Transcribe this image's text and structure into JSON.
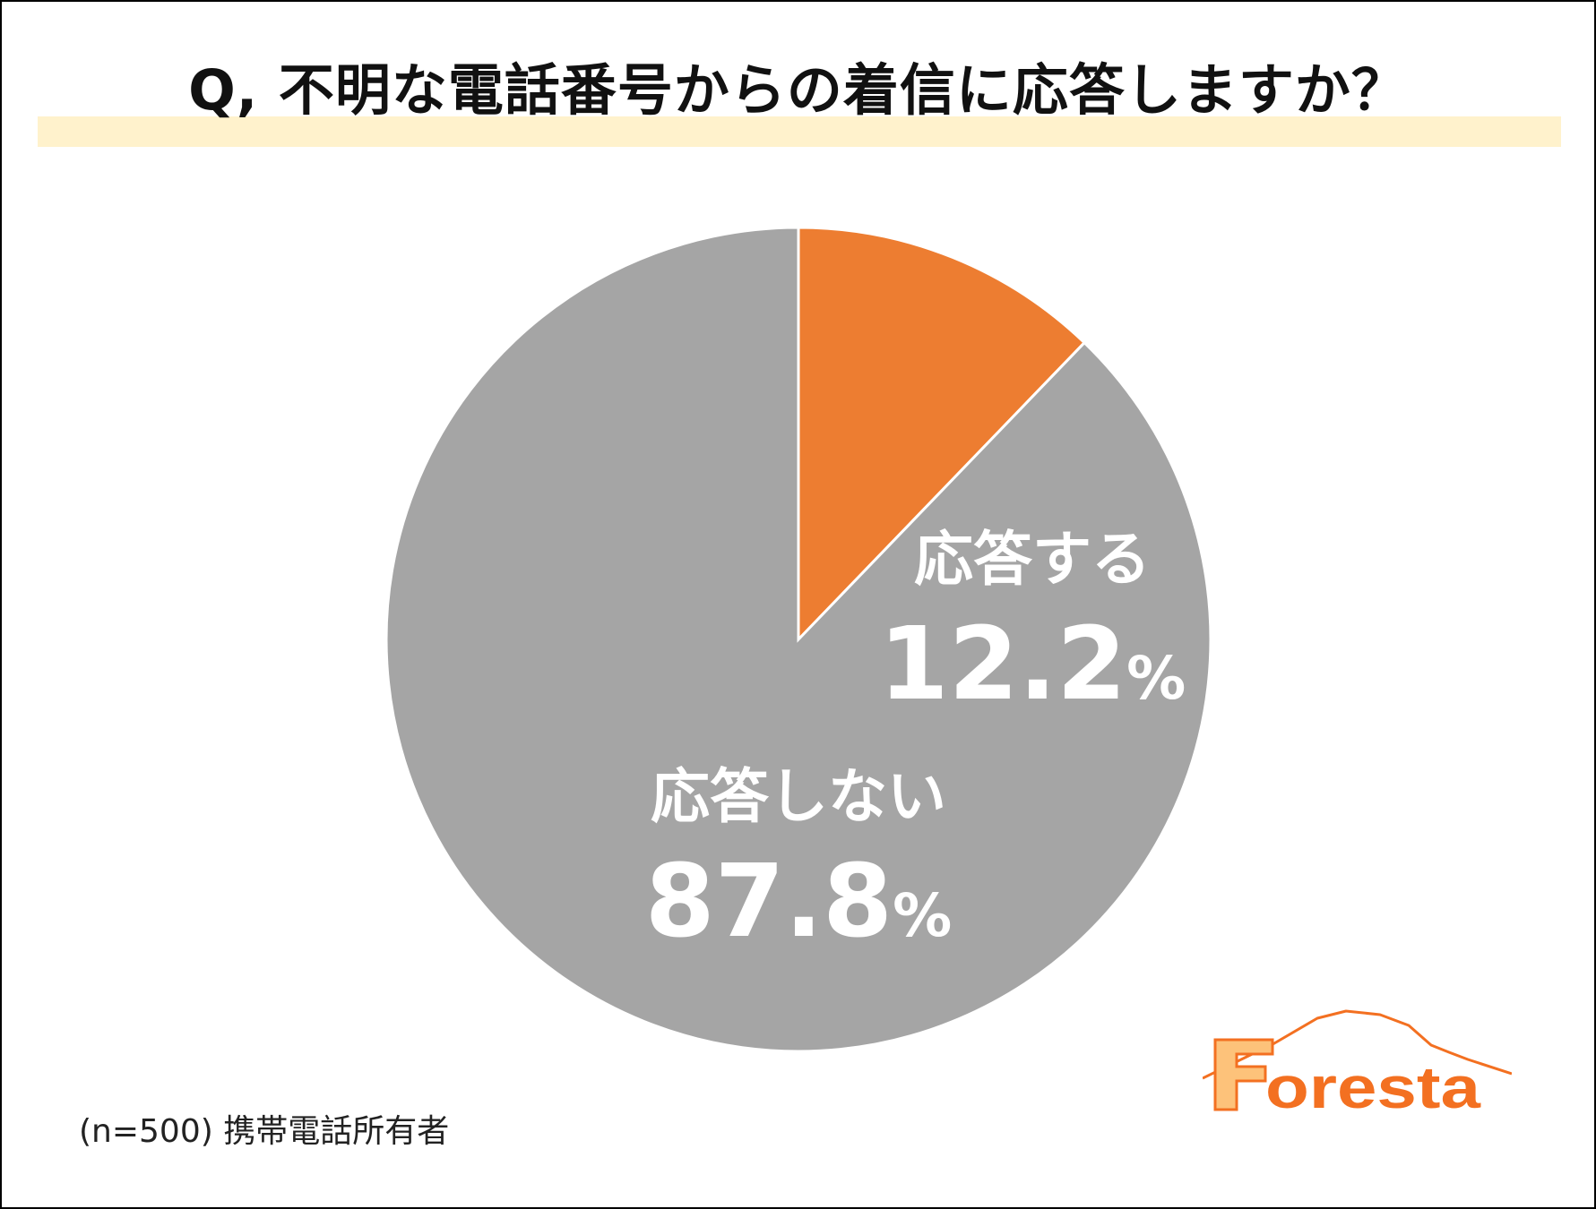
{
  "chart_data": {
    "type": "pie",
    "title": "Q, 不明な電話番号からの着信に応答しますか？",
    "categories": [
      "応答する",
      "応答しない"
    ],
    "values": [
      12.2,
      87.8
    ],
    "value_labels": [
      "12.2",
      "87.8"
    ],
    "unit": "%",
    "colors": [
      "#ed7d31",
      "#a5a5a5"
    ],
    "start": "12 o'clock, clockwise",
    "legend": "none"
  },
  "footnote": "(n=500) 携帯電話所有者",
  "logo": {
    "text": "Foresta",
    "colors": {
      "orange": "#f37021",
      "light": "#fdc27a"
    }
  },
  "colors": {
    "title_band": "#fff2cc",
    "frame": "#000000"
  }
}
